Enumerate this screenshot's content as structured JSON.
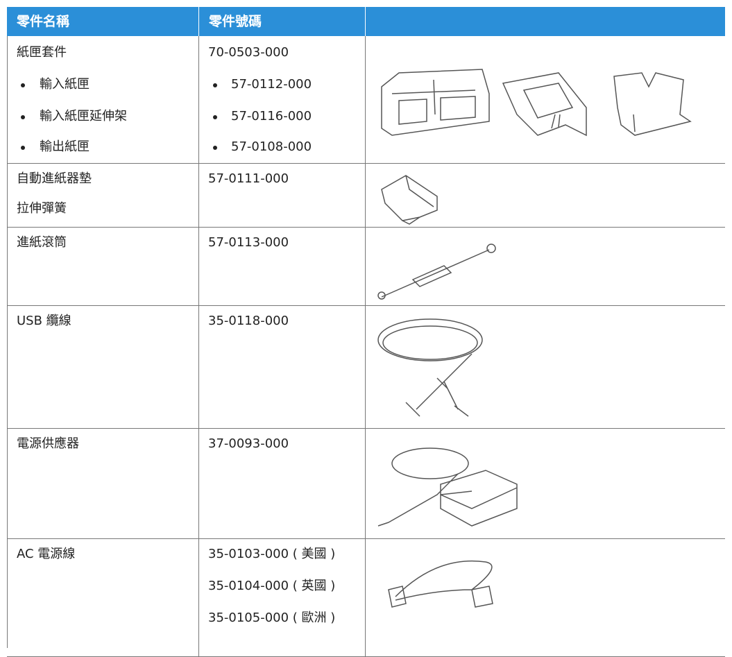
{
  "table": {
    "header": [
      "零件名稱",
      "零件號碼",
      ""
    ],
    "rows": [
      {
        "name": [
          "紙匣套件",
          "輸入紙匣",
          "輸入紙匣延伸架",
          "輸出紙匣"
        ],
        "number": [
          "70-0503-000",
          "57-0112-000",
          "57-0116-000",
          "57-0108-000"
        ]
      },
      {
        "name": [
          "自動進紙器墊",
          "拉伸彈簧"
        ],
        "number": [
          "57-0111-000"
        ]
      },
      {
        "name": [
          "進紙滾筒"
        ],
        "number": [
          "57-0113-000"
        ]
      },
      {
        "name": [
          "USB 纜線"
        ],
        "number": [
          "35-0118-000"
        ]
      },
      {
        "name": [
          "電源供應器"
        ],
        "number": [
          "37-0093-000"
        ]
      },
      {
        "name": [
          "AC 電源線"
        ],
        "number": [
          "35-0103-000 ( 美國 )",
          "35-0104-000 ( 英國 )",
          "35-0105-000 ( 歐洲 )"
        ]
      }
    ]
  }
}
